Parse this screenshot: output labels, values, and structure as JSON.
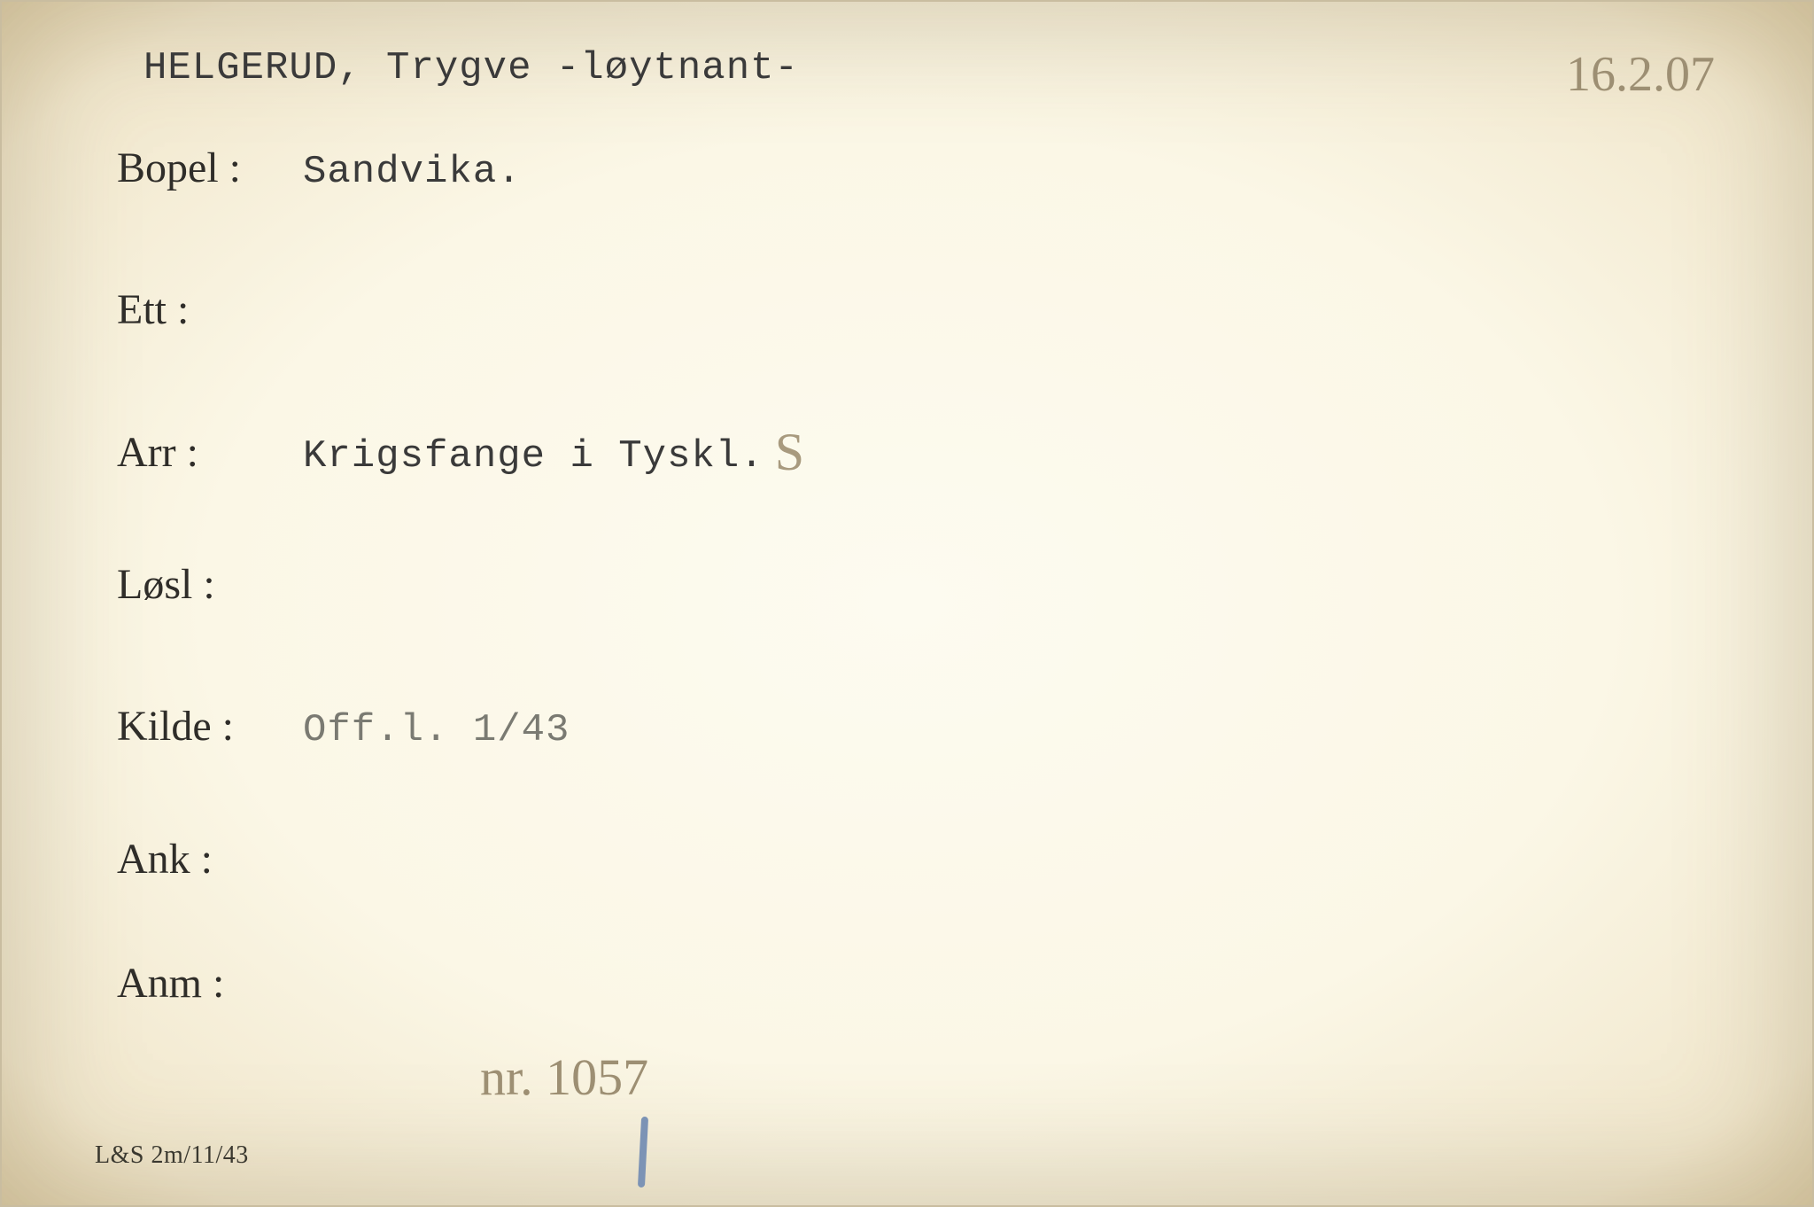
{
  "card": {
    "background_color": "#fbf7e6",
    "vignette_color": "#e3d4b0",
    "text_color": "#2f2d29",
    "typewriter_color": "#3a3a3a",
    "handwriting_color": "#9d8f73",
    "label_font_family": "Times New Roman",
    "label_fontsize_pt": 36,
    "typewriter_font_family": "Courier New",
    "typewriter_fontsize_pt": 33,
    "handwriting_fontsize_pt": 42
  },
  "title": {
    "name": "HELGERUD, Trygve -løytnant-"
  },
  "handwritten": {
    "date_top_right": "16.2.07",
    "arr_suffix": "S",
    "bottom_note": "nr. 1057"
  },
  "fields": {
    "bopel": {
      "label": "Bopel :",
      "value": "Sandvika."
    },
    "ett": {
      "label": "Ett :",
      "value": ""
    },
    "arr": {
      "label": "Arr :",
      "value": "Krigsfange i Tyskl."
    },
    "losl": {
      "label": "Løsl :",
      "value": ""
    },
    "kilde": {
      "label": "Kilde :",
      "value": "Off.l. 1/43"
    },
    "ank": {
      "label": "Ank :",
      "value": ""
    },
    "anm": {
      "label": "Anm :",
      "value": ""
    }
  },
  "footer": {
    "form_code": "L&S 2m/11/43"
  }
}
